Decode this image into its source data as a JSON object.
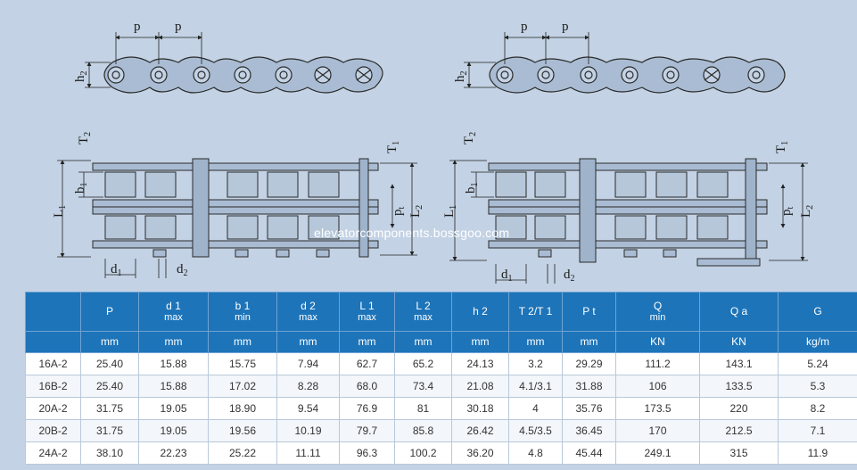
{
  "drawing": {
    "dimension_labels": {
      "p": "p",
      "h2": "h",
      "h2_sub": "2",
      "T2": "T",
      "T2_sub": "2",
      "T1": "T",
      "T1_sub": "1",
      "b1": "b",
      "b1_sub": "1",
      "L1": "L",
      "L1_sub": "1",
      "pt": "p",
      "pt_sub": "t",
      "L2": "L",
      "L2_sub": "2",
      "d1": "d",
      "d1_sub": "1",
      "d2": "d",
      "d2_sub": "2"
    },
    "watermark": "elevatorcomponents.bossgoo.com"
  },
  "table": {
    "columns": [
      {
        "main": "P",
        "sub": "",
        "unit": "mm"
      },
      {
        "main": "d 1",
        "sub": "max",
        "unit": "mm"
      },
      {
        "main": "b 1",
        "sub": "min",
        "unit": "mm"
      },
      {
        "main": "d 2",
        "sub": "max",
        "unit": "mm"
      },
      {
        "main": "L 1",
        "sub": "max",
        "unit": "mm"
      },
      {
        "main": "L 2",
        "sub": "max",
        "unit": "mm"
      },
      {
        "main": "h 2",
        "sub": "",
        "unit": "mm"
      },
      {
        "main": "T 2/T 1",
        "sub": "",
        "unit": "mm"
      },
      {
        "main": "P t",
        "sub": "",
        "unit": "mm"
      },
      {
        "main": "Q",
        "sub": "min",
        "unit": "KN"
      },
      {
        "main": "Q a",
        "sub": "",
        "unit": "KN"
      },
      {
        "main": "G",
        "sub": "",
        "unit": "kg/m"
      }
    ],
    "rows": [
      {
        "model": "16A-2",
        "values": [
          "25.40",
          "15.88",
          "15.75",
          "7.94",
          "62.7",
          "65.2",
          "24.13",
          "3.2",
          "29.29",
          "111.2",
          "143.1",
          "5.24"
        ]
      },
      {
        "model": "16B-2",
        "values": [
          "25.40",
          "15.88",
          "17.02",
          "8.28",
          "68.0",
          "73.4",
          "21.08",
          "4.1/3.1",
          "31.88",
          "106",
          "133.5",
          "5.3"
        ]
      },
      {
        "model": "20A-2",
        "values": [
          "31.75",
          "19.05",
          "18.90",
          "9.54",
          "76.9",
          "81",
          "30.18",
          "4",
          "35.76",
          "173.5",
          "220",
          "8.2"
        ]
      },
      {
        "model": "20B-2",
        "values": [
          "31.75",
          "19.05",
          "19.56",
          "10.19",
          "79.7",
          "85.8",
          "26.42",
          "4.5/3.5",
          "36.45",
          "170",
          "212.5",
          "7.1"
        ]
      },
      {
        "model": "24A-2",
        "values": [
          "38.10",
          "22.23",
          "25.22",
          "11.11",
          "96.3",
          "100.2",
          "36.20",
          "4.8",
          "45.44",
          "249.1",
          "315",
          "11.9"
        ]
      }
    ]
  }
}
